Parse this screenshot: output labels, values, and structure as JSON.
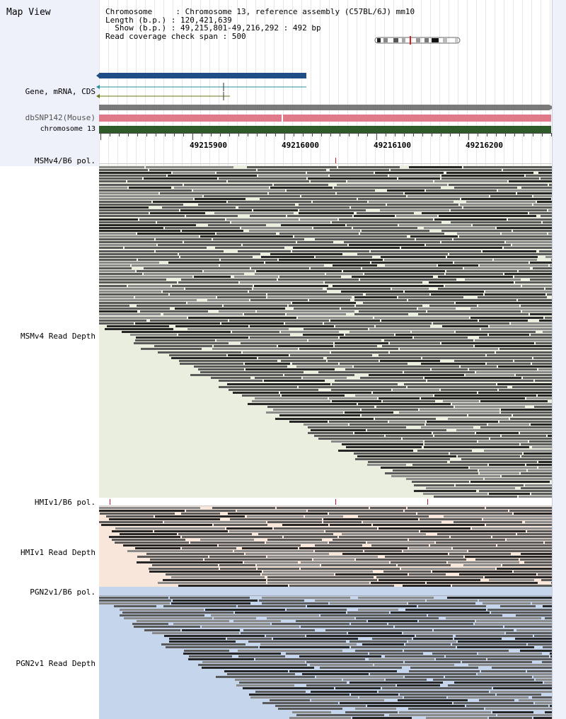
{
  "app": {
    "title": "Map View"
  },
  "info": {
    "chromosome_line": "Chromosome     : Chromosome 13, reference assembly (C57BL/6J) mm10",
    "length_line": "Length (b.p.) : 120,421,639",
    "show_line": "  Show (b.p.) : 49,215,801-49,216,292 : 492 bp",
    "coverage_line": "Read coverage check span : 500"
  },
  "tracks": {
    "gene": "Gene, mRNA, CDS",
    "dbsnp": "dbSNP142(Mouse)",
    "chromosome": "chromosome 13",
    "msm_pol": "MSMv4/B6 pol.",
    "msm_depth": "MSMv4 Read Depth",
    "hmi_pol": "HMIv1/B6 pol.",
    "hmi_depth": "HMIv1 Read Depth",
    "pgn_pol": "PGN2v1/B6 pol.",
    "pgn_depth": "PGN2v1 Read Depth"
  },
  "ruler": {
    "labels": [
      "49215900",
      "49216000",
      "49216100",
      "49216200"
    ]
  },
  "colors": {
    "gene_bar": "#1f4e86",
    "snp_bar": "#e07a8a",
    "chrom_bar": "#2f5a2a",
    "msm_bg": "#e9eedf",
    "hmi_bg": "#f9e6da",
    "pgn_bg": "#c5d6ec",
    "read_dark": "#262626",
    "read_mid": "#5a5a5a",
    "read_light": "#8a8a8a",
    "pol_mark": "#c0202a"
  }
}
